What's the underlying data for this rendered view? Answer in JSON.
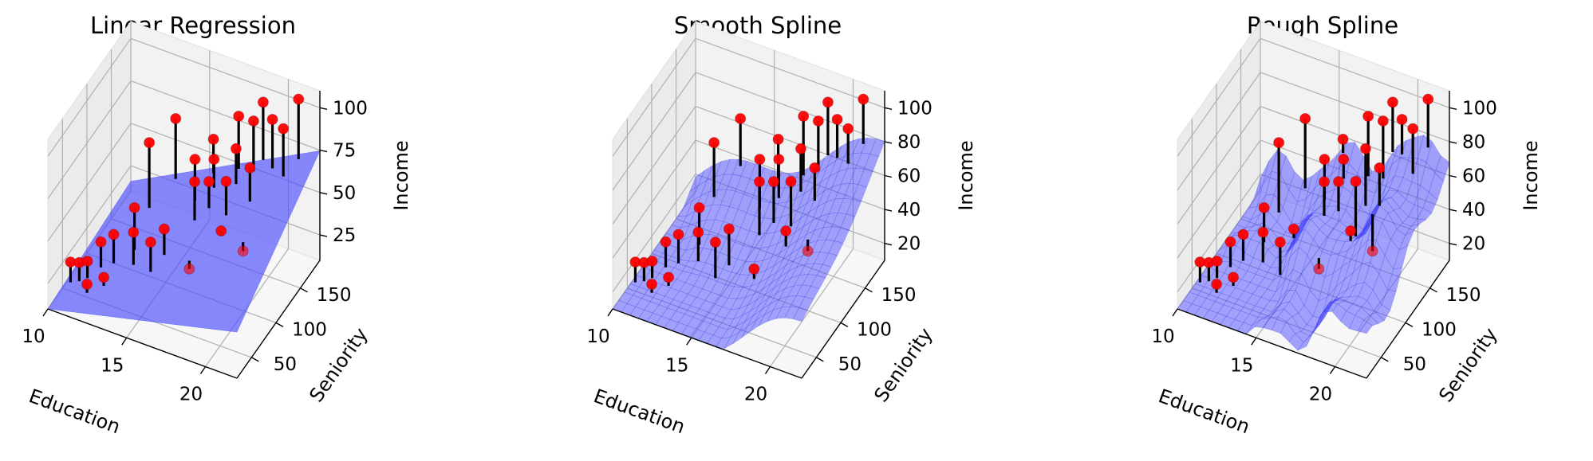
{
  "figure": {
    "panel_titles": [
      "Linear Regression",
      "Smooth Spline",
      "Rough Spline"
    ]
  },
  "colors": {
    "surface": "#4c4cff",
    "surface_edge": "#2020e0",
    "point": "#ff0000",
    "residual": "#000000",
    "pane": "#f2f2f2",
    "grid": "#b0b0b0"
  },
  "chart_data": [
    {
      "type": "scatter",
      "surface": "linear",
      "title": "Linear Regression",
      "xlabel": "Education",
      "ylabel": "Seniority",
      "zlabel": "Income",
      "xlim": [
        10,
        22
      ],
      "ylim": [
        20,
        190
      ],
      "zlim": [
        10,
        110
      ],
      "xticks": [
        10,
        15,
        20
      ],
      "yticks": [
        50,
        100,
        150
      ],
      "zticks": [
        25,
        50,
        75,
        100
      ],
      "grid": true,
      "points": [
        {
          "education": 10.2,
          "seniority": 60,
          "income": 22
        },
        {
          "education": 10.6,
          "seniority": 65,
          "income": 21
        },
        {
          "education": 10.9,
          "seniority": 72,
          "income": 20
        },
        {
          "education": 11.2,
          "seniority": 90,
          "income": 25
        },
        {
          "education": 11.4,
          "seniority": 55,
          "income": 15
        },
        {
          "education": 11.7,
          "seniority": 100,
          "income": 27
        },
        {
          "education": 12.0,
          "seniority": 70,
          "income": 15
        },
        {
          "education": 12.1,
          "seniority": 160,
          "income": 58
        },
        {
          "education": 12.4,
          "seniority": 120,
          "income": 37
        },
        {
          "education": 12.8,
          "seniority": 105,
          "income": 30
        },
        {
          "education": 13.0,
          "seniority": 185,
          "income": 65
        },
        {
          "education": 14.2,
          "seniority": 95,
          "income": 33
        },
        {
          "education": 14.6,
          "seniority": 110,
          "income": 36
        },
        {
          "education": 15.0,
          "seniority": 160,
          "income": 58
        },
        {
          "education": 15.4,
          "seniority": 185,
          "income": 61
        },
        {
          "education": 15.6,
          "seniority": 140,
          "income": 55
        },
        {
          "education": 15.9,
          "seniority": 170,
          "income": 57
        },
        {
          "education": 16.2,
          "seniority": 150,
          "income": 53
        },
        {
          "education": 16.5,
          "seniority": 100,
          "income": 23
        },
        {
          "education": 17.0,
          "seniority": 185,
          "income": 80
        },
        {
          "education": 17.3,
          "seniority": 170,
          "income": 68
        },
        {
          "education": 17.6,
          "seniority": 140,
          "income": 62
        },
        {
          "education": 17.9,
          "seniority": 120,
          "income": 42
        },
        {
          "education": 18.1,
          "seniority": 180,
          "income": 83
        },
        {
          "education": 18.4,
          "seniority": 190,
          "income": 91
        },
        {
          "education": 18.8,
          "seniority": 150,
          "income": 70
        },
        {
          "education": 19.3,
          "seniority": 180,
          "income": 88
        },
        {
          "education": 19.6,
          "seniority": 110,
          "income": 40
        },
        {
          "education": 20.3,
          "seniority": 170,
          "income": 90
        },
        {
          "education": 20.8,
          "seniority": 185,
          "income": 103
        }
      ]
    },
    {
      "type": "scatter",
      "surface": "smooth spline",
      "title": "Smooth Spline",
      "xlabel": "Education",
      "ylabel": "Seniority",
      "zlabel": "Income",
      "xlim": [
        10,
        22
      ],
      "ylim": [
        20,
        190
      ],
      "zlim": [
        10,
        110
      ],
      "xticks": [
        10,
        15,
        20
      ],
      "yticks": [
        50,
        100,
        150
      ],
      "zticks": [
        20,
        40,
        60,
        80,
        100
      ],
      "grid": true,
      "points": [
        {
          "education": 10.2,
          "seniority": 60,
          "income": 22
        },
        {
          "education": 10.6,
          "seniority": 65,
          "income": 21
        },
        {
          "education": 10.9,
          "seniority": 72,
          "income": 20
        },
        {
          "education": 11.2,
          "seniority": 90,
          "income": 25
        },
        {
          "education": 11.4,
          "seniority": 55,
          "income": 15
        },
        {
          "education": 11.7,
          "seniority": 100,
          "income": 27
        },
        {
          "education": 12.0,
          "seniority": 70,
          "income": 15
        },
        {
          "education": 12.1,
          "seniority": 160,
          "income": 58
        },
        {
          "education": 12.4,
          "seniority": 120,
          "income": 37
        },
        {
          "education": 12.8,
          "seniority": 105,
          "income": 30
        },
        {
          "education": 13.0,
          "seniority": 185,
          "income": 65
        },
        {
          "education": 14.2,
          "seniority": 95,
          "income": 33
        },
        {
          "education": 14.6,
          "seniority": 110,
          "income": 36
        },
        {
          "education": 15.0,
          "seniority": 160,
          "income": 58
        },
        {
          "education": 15.4,
          "seniority": 185,
          "income": 61
        },
        {
          "education": 15.6,
          "seniority": 140,
          "income": 55
        },
        {
          "education": 15.9,
          "seniority": 170,
          "income": 57
        },
        {
          "education": 16.2,
          "seniority": 150,
          "income": 53
        },
        {
          "education": 16.5,
          "seniority": 100,
          "income": 23
        },
        {
          "education": 17.0,
          "seniority": 185,
          "income": 80
        },
        {
          "education": 17.3,
          "seniority": 170,
          "income": 68
        },
        {
          "education": 17.6,
          "seniority": 140,
          "income": 62
        },
        {
          "education": 17.9,
          "seniority": 120,
          "income": 42
        },
        {
          "education": 18.1,
          "seniority": 180,
          "income": 83
        },
        {
          "education": 18.4,
          "seniority": 190,
          "income": 91
        },
        {
          "education": 18.8,
          "seniority": 150,
          "income": 70
        },
        {
          "education": 19.3,
          "seniority": 180,
          "income": 88
        },
        {
          "education": 19.6,
          "seniority": 110,
          "income": 40
        },
        {
          "education": 20.3,
          "seniority": 170,
          "income": 90
        },
        {
          "education": 20.8,
          "seniority": 185,
          "income": 103
        }
      ]
    },
    {
      "type": "scatter",
      "surface": "rough spline",
      "title": "Rough Spline",
      "xlabel": "Education",
      "ylabel": "Seniority",
      "zlabel": "Income",
      "xlim": [
        10,
        22
      ],
      "ylim": [
        20,
        190
      ],
      "zlim": [
        10,
        110
      ],
      "xticks": [
        10,
        15,
        20
      ],
      "yticks": [
        50,
        100,
        150
      ],
      "zticks": [
        20,
        40,
        60,
        80,
        100
      ],
      "grid": true,
      "points": [
        {
          "education": 10.2,
          "seniority": 60,
          "income": 22
        },
        {
          "education": 10.6,
          "seniority": 65,
          "income": 21
        },
        {
          "education": 10.9,
          "seniority": 72,
          "income": 20
        },
        {
          "education": 11.2,
          "seniority": 90,
          "income": 25
        },
        {
          "education": 11.4,
          "seniority": 55,
          "income": 15
        },
        {
          "education": 11.7,
          "seniority": 100,
          "income": 27
        },
        {
          "education": 12.0,
          "seniority": 70,
          "income": 15
        },
        {
          "education": 12.1,
          "seniority": 160,
          "income": 58
        },
        {
          "education": 12.4,
          "seniority": 120,
          "income": 37
        },
        {
          "education": 12.8,
          "seniority": 105,
          "income": 30
        },
        {
          "education": 13.0,
          "seniority": 185,
          "income": 65
        },
        {
          "education": 14.2,
          "seniority": 95,
          "income": 33
        },
        {
          "education": 14.6,
          "seniority": 110,
          "income": 36
        },
        {
          "education": 15.0,
          "seniority": 160,
          "income": 58
        },
        {
          "education": 15.4,
          "seniority": 185,
          "income": 61
        },
        {
          "education": 15.6,
          "seniority": 140,
          "income": 55
        },
        {
          "education": 15.9,
          "seniority": 170,
          "income": 57
        },
        {
          "education": 16.2,
          "seniority": 150,
          "income": 53
        },
        {
          "education": 16.5,
          "seniority": 100,
          "income": 23
        },
        {
          "education": 17.0,
          "seniority": 185,
          "income": 80
        },
        {
          "education": 17.3,
          "seniority": 170,
          "income": 68
        },
        {
          "education": 17.6,
          "seniority": 140,
          "income": 62
        },
        {
          "education": 17.9,
          "seniority": 120,
          "income": 42
        },
        {
          "education": 18.1,
          "seniority": 180,
          "income": 83
        },
        {
          "education": 18.4,
          "seniority": 190,
          "income": 91
        },
        {
          "education": 18.8,
          "seniority": 150,
          "income": 70
        },
        {
          "education": 19.3,
          "seniority": 180,
          "income": 88
        },
        {
          "education": 19.6,
          "seniority": 110,
          "income": 40
        },
        {
          "education": 20.3,
          "seniority": 170,
          "income": 90
        },
        {
          "education": 20.8,
          "seniority": 185,
          "income": 103
        }
      ]
    }
  ]
}
